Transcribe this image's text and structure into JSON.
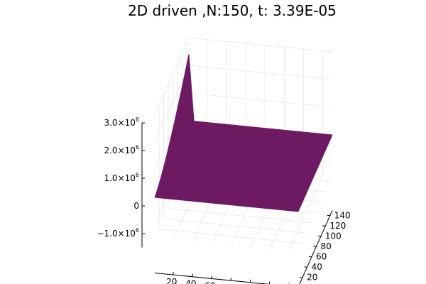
{
  "chart_data": {
    "type": "surface",
    "title": "2D driven ,N:150, t: 3.39E-05",
    "x_ticks": [
      20,
      40,
      60,
      80,
      100,
      120,
      140
    ],
    "y_ticks": [
      20,
      40,
      60,
      80,
      100,
      120,
      140
    ],
    "z_ticks": [
      {
        "value": -1000000,
        "mantissa": "−1.0×10",
        "exp": "6"
      },
      {
        "value": 0,
        "mantissa": "0",
        "exp": ""
      },
      {
        "value": 1000000,
        "mantissa": "1.0×10",
        "exp": "6"
      },
      {
        "value": 2000000,
        "mantissa": "2.0×10",
        "exp": "6"
      },
      {
        "value": 3000000,
        "mantissa": "3.0×10",
        "exp": "6"
      }
    ],
    "xlim": [
      1,
      150
    ],
    "ylim": [
      1,
      150
    ],
    "zlim": [
      -1500000,
      3000000
    ],
    "surface_value": 0,
    "edge_peak_value": 2400000,
    "surface_color": "#6e1a62",
    "grid": true
  }
}
